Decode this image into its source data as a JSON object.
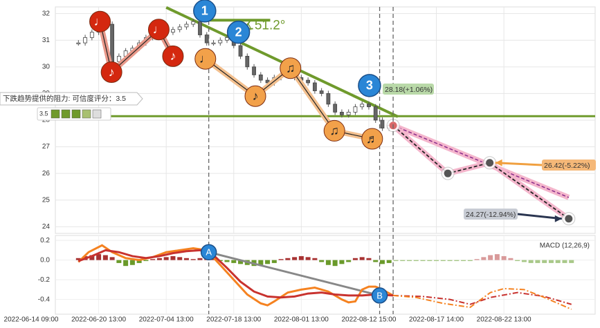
{
  "chart_data": [
    {
      "type": "candlestick",
      "xlim": [
        0,
        83
      ],
      "ylim": [
        23.75,
        32.25
      ],
      "yticks": [
        24,
        25,
        26,
        27,
        28,
        29,
        30,
        31,
        32
      ],
      "grid": true,
      "x": [
        7,
        8,
        9,
        10,
        11,
        12,
        13,
        14,
        15,
        16,
        17,
        18,
        19,
        20,
        21,
        22,
        23,
        24,
        25,
        26,
        27,
        28,
        29,
        30,
        31,
        32,
        33,
        34,
        35,
        36,
        37,
        38,
        39,
        40,
        41,
        42,
        43,
        44,
        45,
        46,
        47,
        48,
        49,
        50,
        51,
        52,
        53
      ],
      "close": [
        30.9,
        31.1,
        31.3,
        31.5,
        31.6,
        30.2,
        30.4,
        30.6,
        30.7,
        30.9,
        31.1,
        31.4,
        31.4,
        31.3,
        31.4,
        31.5,
        31.6,
        31.7,
        31.2,
        30.9,
        30.9,
        31.0,
        31.1,
        30.8,
        30.4,
        30.0,
        29.7,
        29.5,
        29.4,
        29.6,
        29.7,
        29.7,
        29.6,
        29.5,
        29.4,
        29.1,
        29.0,
        28.6,
        28.3,
        28.2,
        28.3,
        28.5,
        28.6,
        28.5,
        28.0,
        27.7,
        27.8
      ],
      "waves": [
        {
          "color": "#d4280f",
          "band": "#e8998a",
          "points": [
            {
              "x": 10.2,
              "value": 31.7,
              "label": "♩"
            },
            {
              "x": 11.9,
              "value": 29.8,
              "label": "♪"
            },
            {
              "x": 18.9,
              "value": 31.4,
              "label": "♩"
            },
            {
              "x": 21.0,
              "value": 30.4,
              "label": "♪"
            }
          ]
        },
        {
          "color": "#f2a14a",
          "band": "#f3c08f",
          "points": [
            {
              "x": 25.8,
              "value": 30.3,
              "label": "♩"
            },
            {
              "x": 33.2,
              "value": 28.9,
              "label": "♪"
            },
            {
              "x": 38.4,
              "value": 29.95,
              "label": "♫"
            },
            {
              "x": 44.9,
              "value": 27.6,
              "label": "♫"
            },
            {
              "x": 50.5,
              "value": 27.3,
              "label": "♬"
            }
          ]
        }
      ],
      "pivots": [
        {
          "x": 25.7,
          "value": 32.1,
          "label": "1"
        },
        {
          "x": 30.7,
          "value": 31.3,
          "label": "2"
        },
        {
          "x": 50.1,
          "value": 29.3,
          "label": "3"
        }
      ],
      "trendline": {
        "color": "#6f9a2c",
        "x": [
          20,
          54.3
        ],
        "values": [
          32.23,
          28.13
        ]
      },
      "angle_line": {
        "x": [
          25.7,
          35.4
        ],
        "values": [
          31.75,
          31.75
        ],
        "label": "∡51.2°"
      },
      "resistance": {
        "value": 28.15,
        "label": "下跌趋势提供的阻力: 可信度评分：3.5",
        "score": 3.5
      },
      "forecast": {
        "x": [
          53.6,
          61.7,
          67.9,
          79.6
        ],
        "values": [
          27.8,
          26.0,
          26.4,
          24.3
        ]
      },
      "forecast_upper": {
        "x": [
          53.6,
          79.6
        ],
        "values": [
          27.8,
          25.1
        ]
      },
      "annotations": [
        {
          "label": "28.18(+1.06%)",
          "value": 28.18,
          "color": "#b9d9a8"
        },
        {
          "label": "26.42(-5.22%)",
          "value": 26.42,
          "color": "#f5b878"
        },
        {
          "label": "24.27(-12.94%)",
          "value": 24.27,
          "color": "#c8ccd4"
        }
      ]
    },
    {
      "type": "macd",
      "title": "MACD (12,26,9)",
      "xlim": [
        0,
        83
      ],
      "ylim": [
        -0.55,
        0.25
      ],
      "yticks": [
        0.2,
        {
          "value": 0,
          "label": "0.0"
        },
        -0.2,
        -0.4
      ],
      "xticks": [
        {
          "value": 0,
          "label": "2022-06-14 09:00"
        },
        {
          "value": 10,
          "label": "2022-06-20 13:00"
        },
        {
          "value": 20,
          "label": "2022-07-04 13:00"
        },
        {
          "value": 30,
          "label": "2022-07-18 13:00"
        },
        {
          "value": 40,
          "label": "2022-08-01 13:00"
        },
        {
          "value": 50,
          "label": "2022-08-12 15:00"
        },
        {
          "value": 60,
          "label": "2022-08-17 14:00"
        },
        {
          "value": 70,
          "label": "2022-08-22 13:00"
        }
      ],
      "histogram": {
        "x": [
          7,
          8,
          9,
          10,
          11,
          12,
          13,
          14,
          15,
          16,
          17,
          18,
          19,
          20,
          21,
          22,
          23,
          24,
          25,
          26,
          27,
          28,
          29,
          30,
          31,
          32,
          33,
          34,
          35,
          36,
          37,
          38,
          39,
          40,
          41,
          42,
          43,
          44,
          45,
          46,
          47,
          48,
          49,
          50,
          51,
          52,
          53,
          54,
          55,
          56,
          57,
          58,
          59,
          60,
          61,
          62,
          63,
          64,
          65,
          66,
          67,
          68,
          69,
          70,
          71,
          72,
          73,
          74,
          75,
          76,
          77,
          78,
          79,
          80
        ],
        "values": [
          0.02,
          0.04,
          0.05,
          0.06,
          0.05,
          0.03,
          -0.03,
          -0.06,
          -0.05,
          -0.03,
          -0.01,
          0.01,
          0.02,
          0.03,
          0.04,
          0.03,
          0.02,
          0.01,
          0.02,
          0.03,
          0.02,
          -0.01,
          -0.02,
          -0.03,
          -0.04,
          -0.05,
          -0.06,
          -0.05,
          -0.04,
          -0.03,
          0.01,
          0.02,
          0.03,
          0.04,
          0.03,
          0.02,
          -0.02,
          -0.05,
          -0.06,
          -0.04,
          -0.02,
          0.02,
          0.03,
          0.02,
          -0.02,
          -0.04,
          -0.03,
          -0.01,
          -0.01,
          -0.01,
          -0.01,
          -0.01,
          -0.01,
          -0.01,
          -0.01,
          -0.01,
          -0.01,
          -0.01,
          -0.01,
          0.01,
          0.03,
          0.05,
          0.06,
          0.04,
          0.02,
          -0.01,
          -0.02,
          -0.03,
          -0.03,
          -0.03,
          -0.03,
          -0.03,
          -0.03,
          -0.03
        ]
      },
      "lines": [
        {
          "color": "#f58220",
          "dash": false,
          "x": [
            7,
            8.5,
            10.5,
            12,
            14,
            16,
            18,
            20,
            22,
            24,
            26,
            28,
            30,
            32,
            34,
            35,
            36,
            38,
            40,
            42,
            44,
            46,
            47,
            48,
            49,
            50,
            51,
            52,
            53.6
          ],
          "values": [
            -0.02,
            0.08,
            0.15,
            0.08,
            0.02,
            0.0,
            0.03,
            0.08,
            0.1,
            0.12,
            0.1,
            -0.05,
            -0.2,
            -0.35,
            -0.44,
            -0.46,
            -0.42,
            -0.33,
            -0.3,
            -0.28,
            -0.32,
            -0.4,
            -0.43,
            -0.42,
            -0.3,
            -0.27,
            -0.27,
            -0.3,
            -0.36
          ]
        },
        {
          "color": "#c8322e",
          "dash": false,
          "x": [
            7,
            9,
            11,
            13,
            15,
            17,
            19,
            21,
            23,
            25,
            27,
            29,
            31,
            33,
            35,
            37,
            39,
            41,
            43,
            45,
            47,
            49,
            51,
            53.6
          ],
          "values": [
            -0.01,
            0.04,
            0.1,
            0.08,
            0.04,
            0.02,
            0.04,
            0.07,
            0.09,
            0.1,
            0.05,
            -0.08,
            -0.22,
            -0.32,
            -0.37,
            -0.38,
            -0.37,
            -0.34,
            -0.33,
            -0.35,
            -0.36,
            -0.36,
            -0.35,
            -0.36
          ]
        },
        {
          "color": "#c8322e",
          "dash": true,
          "x": [
            53.6,
            58,
            62,
            65,
            68,
            72,
            76,
            80
          ],
          "values": [
            -0.36,
            -0.37,
            -0.4,
            -0.45,
            -0.38,
            -0.33,
            -0.37,
            -0.45
          ]
        },
        {
          "color": "#f58220",
          "dash": true,
          "x": [
            53.6,
            57,
            61,
            65,
            68,
            70,
            73,
            76,
            80
          ],
          "values": [
            -0.36,
            -0.38,
            -0.44,
            -0.48,
            -0.33,
            -0.29,
            -0.3,
            -0.38,
            -0.5
          ]
        }
      ],
      "markers": [
        {
          "label": "A",
          "x": 26.3,
          "value": 0.08
        },
        {
          "label": "B",
          "x": 51.6,
          "value": -0.36
        }
      ]
    }
  ]
}
